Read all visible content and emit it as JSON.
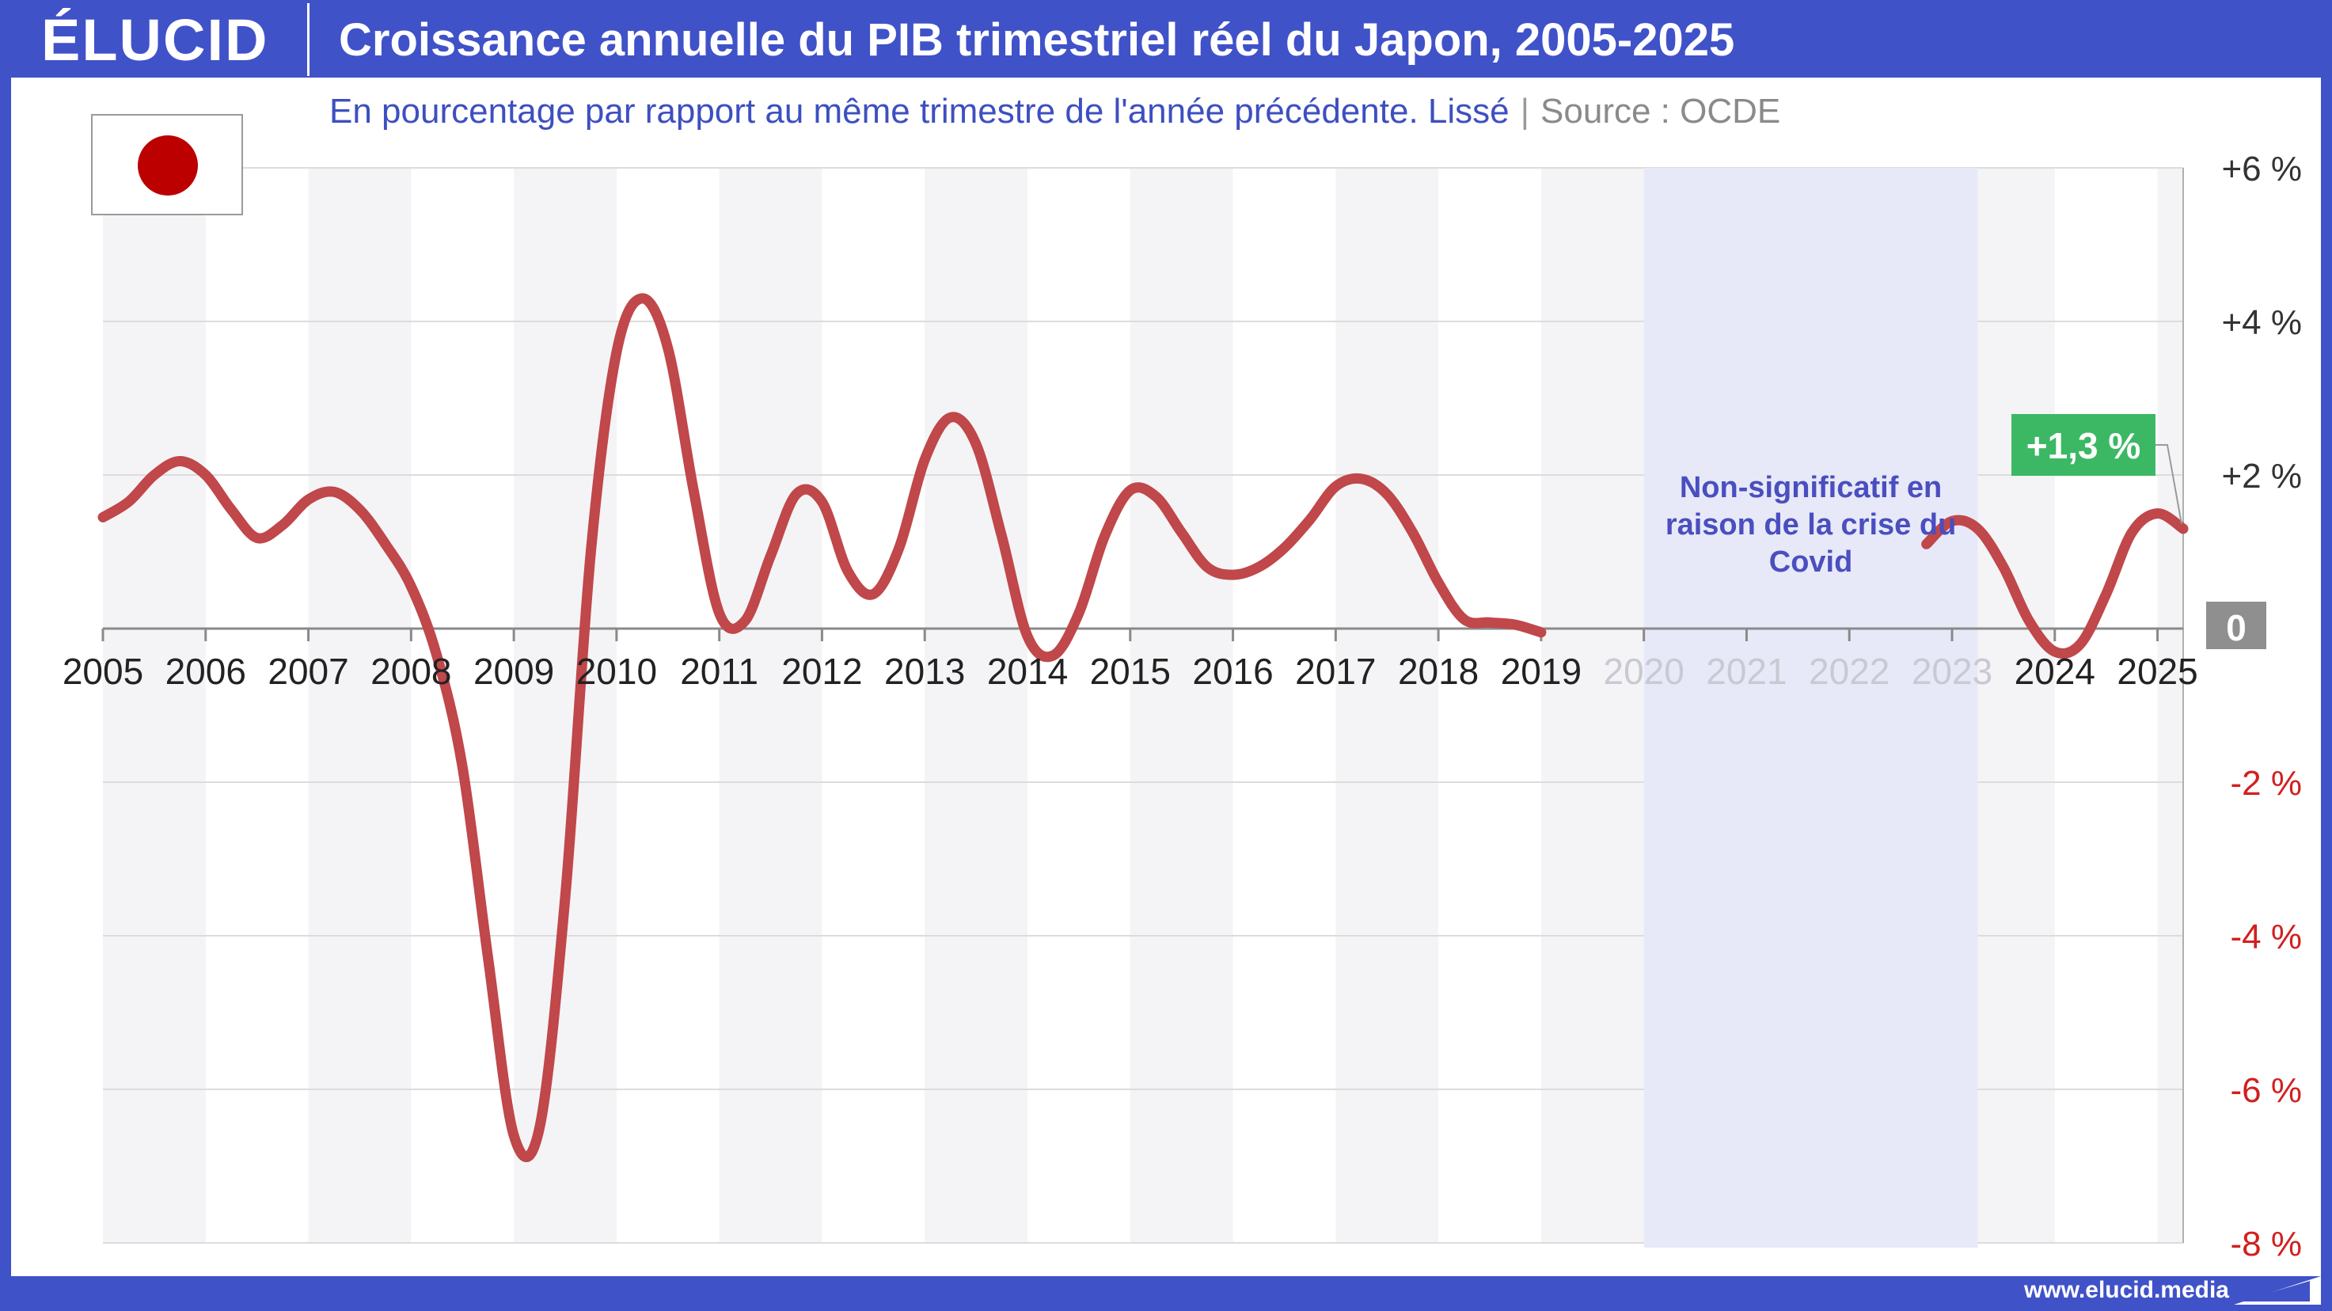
{
  "header": {
    "logo": "ÉLUCID",
    "title": "Croissance annuelle du PIB trimestriel réel du Japon, 2005-2025"
  },
  "subtitle": {
    "text": "En pourcentage par rapport au même trimestre de l'année précédente. Lissé",
    "separator": "|",
    "source": "Source : OCDE"
  },
  "flag": {
    "icon": "japan-flag-icon",
    "disc_color": "#bc0000"
  },
  "footer": {
    "url": "www.elucid.media"
  },
  "colors": {
    "line": "#c0474a",
    "shade": "#f4f4f6",
    "covid": "#e7e9f8",
    "label_bg": "#3cb864",
    "zero_bg": "#8f8f8f",
    "negative": "#d21f1f"
  },
  "chart_data": {
    "type": "line",
    "title": "Croissance annuelle du PIB trimestriel réel du Japon, 2005-2025",
    "xlabel": "",
    "ylabel": "",
    "ylim": [
      -8,
      6
    ],
    "xlim": [
      2005,
      2025.25
    ],
    "x_ticks": [
      "2005",
      "2006",
      "2007",
      "2008",
      "2009",
      "2010",
      "2011",
      "2012",
      "2013",
      "2014",
      "2015",
      "2016",
      "2017",
      "2018",
      "2019",
      "2020",
      "2021",
      "2022",
      "2023",
      "2024",
      "2025"
    ],
    "y_ticks": [
      {
        "value": 6,
        "label": "+6 %"
      },
      {
        "value": 4,
        "label": "+4 %"
      },
      {
        "value": 2,
        "label": "+2 %"
      },
      {
        "value": 0,
        "label": "0"
      },
      {
        "value": -2,
        "label": "-2 %"
      },
      {
        "value": -4,
        "label": "-4 %"
      },
      {
        "value": -6,
        "label": "-6 %"
      },
      {
        "value": -8,
        "label": "-8 %"
      }
    ],
    "grid": true,
    "shaded_years": [
      2005,
      2007,
      2009,
      2011,
      2013,
      2015,
      2017,
      2019,
      2021,
      2023,
      2025
    ],
    "covid_region": {
      "x": [
        2020,
        2023.25
      ],
      "label": [
        "Non-significatif en",
        "raison de la crise du",
        "Covid"
      ]
    },
    "series": [
      {
        "segments": [
          [
            [
              2005.0,
              1.45
            ],
            [
              2005.25,
              1.65
            ],
            [
              2005.5,
              2.0
            ],
            [
              2005.75,
              2.18
            ],
            [
              2006.0,
              2.0
            ],
            [
              2006.25,
              1.55
            ],
            [
              2006.5,
              1.18
            ],
            [
              2006.75,
              1.35
            ],
            [
              2007.0,
              1.68
            ],
            [
              2007.25,
              1.78
            ],
            [
              2007.5,
              1.55
            ],
            [
              2007.75,
              1.1
            ],
            [
              2008.0,
              0.55
            ],
            [
              2008.25,
              -0.35
            ],
            [
              2008.5,
              -1.8
            ],
            [
              2008.75,
              -4.3
            ],
            [
              2009.0,
              -6.6
            ],
            [
              2009.25,
              -6.5
            ],
            [
              2009.5,
              -3.5
            ],
            [
              2009.75,
              1.0
            ],
            [
              2010.0,
              3.6
            ],
            [
              2010.25,
              4.3
            ],
            [
              2010.5,
              3.65
            ],
            [
              2010.75,
              1.8
            ],
            [
              2011.0,
              0.2
            ],
            [
              2011.25,
              0.1
            ],
            [
              2011.5,
              0.95
            ],
            [
              2011.75,
              1.75
            ],
            [
              2012.0,
              1.65
            ],
            [
              2012.25,
              0.75
            ],
            [
              2012.5,
              0.45
            ],
            [
              2012.75,
              1.05
            ],
            [
              2013.0,
              2.2
            ],
            [
              2013.25,
              2.75
            ],
            [
              2013.5,
              2.4
            ],
            [
              2013.75,
              1.2
            ],
            [
              2014.0,
              -0.1
            ],
            [
              2014.25,
              -0.35
            ],
            [
              2014.5,
              0.2
            ],
            [
              2014.75,
              1.2
            ],
            [
              2015.0,
              1.8
            ],
            [
              2015.25,
              1.72
            ],
            [
              2015.5,
              1.25
            ],
            [
              2015.75,
              0.8
            ],
            [
              2016.0,
              0.7
            ],
            [
              2016.25,
              0.8
            ],
            [
              2016.5,
              1.05
            ],
            [
              2016.75,
              1.42
            ],
            [
              2017.0,
              1.85
            ],
            [
              2017.25,
              1.95
            ],
            [
              2017.5,
              1.75
            ],
            [
              2017.75,
              1.25
            ],
            [
              2018.0,
              0.6
            ],
            [
              2018.25,
              0.12
            ],
            [
              2018.5,
              0.08
            ],
            [
              2018.75,
              0.05
            ],
            [
              2019.0,
              -0.05
            ]
          ],
          [
            [
              2022.75,
              1.1
            ],
            [
              2023.0,
              1.4
            ],
            [
              2023.25,
              1.3
            ],
            [
              2023.5,
              0.8
            ],
            [
              2023.75,
              0.1
            ],
            [
              2024.0,
              -0.3
            ],
            [
              2024.25,
              -0.2
            ],
            [
              2024.5,
              0.45
            ],
            [
              2024.75,
              1.25
            ],
            [
              2025.0,
              1.5
            ],
            [
              2025.25,
              1.3
            ]
          ]
        ]
      }
    ],
    "last_value_label": "+1,3 %"
  }
}
